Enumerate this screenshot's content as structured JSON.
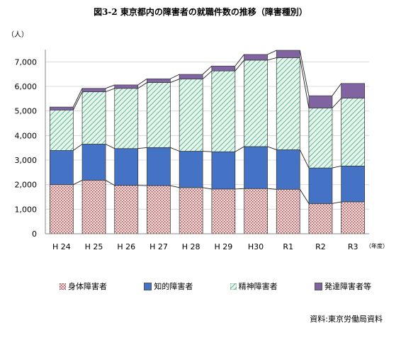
{
  "chart_data": {
    "type": "bar",
    "stacked": true,
    "title": "図3-2 東京都内の障害者の就職件数の推移（障害種別）",
    "ylabel": "（人）",
    "xunit": "（年度）",
    "categories": [
      "H 24",
      "H 25",
      "H 26",
      "H 27",
      "H 28",
      "H 29",
      "H30",
      "R1",
      "R2",
      "R3"
    ],
    "ylim": [
      0,
      8000
    ],
    "yticks": [
      "0",
      "1,000",
      "2,000",
      "3,000",
      "4,000",
      "5,000",
      "6,000",
      "7,000"
    ],
    "series": [
      {
        "name": "身体障害者",
        "values": [
          2000,
          2180,
          1970,
          1960,
          1880,
          1820,
          1840,
          1810,
          1230,
          1300
        ]
      },
      {
        "name": "知的障害者",
        "values": [
          1390,
          1470,
          1500,
          1550,
          1480,
          1520,
          1710,
          1610,
          1450,
          1460
        ]
      },
      {
        "name": "精神障害者",
        "values": [
          1650,
          2130,
          2450,
          2650,
          2940,
          3290,
          3520,
          3750,
          2440,
          2760
        ]
      },
      {
        "name": "発達障害者等",
        "values": [
          120,
          140,
          140,
          150,
          190,
          200,
          230,
          300,
          500,
          600
        ]
      }
    ],
    "colors": {
      "physical": "#e8d0d0",
      "physical_dot": "#b05a5a",
      "intellectual": "#4472c4",
      "mental_bg": "#e2f5ec",
      "mental_line": "#2f9c6a",
      "developmental": "#8064a2"
    },
    "grid": true,
    "legend_position": "bottom"
  },
  "source": "資料:東京労働局資料"
}
